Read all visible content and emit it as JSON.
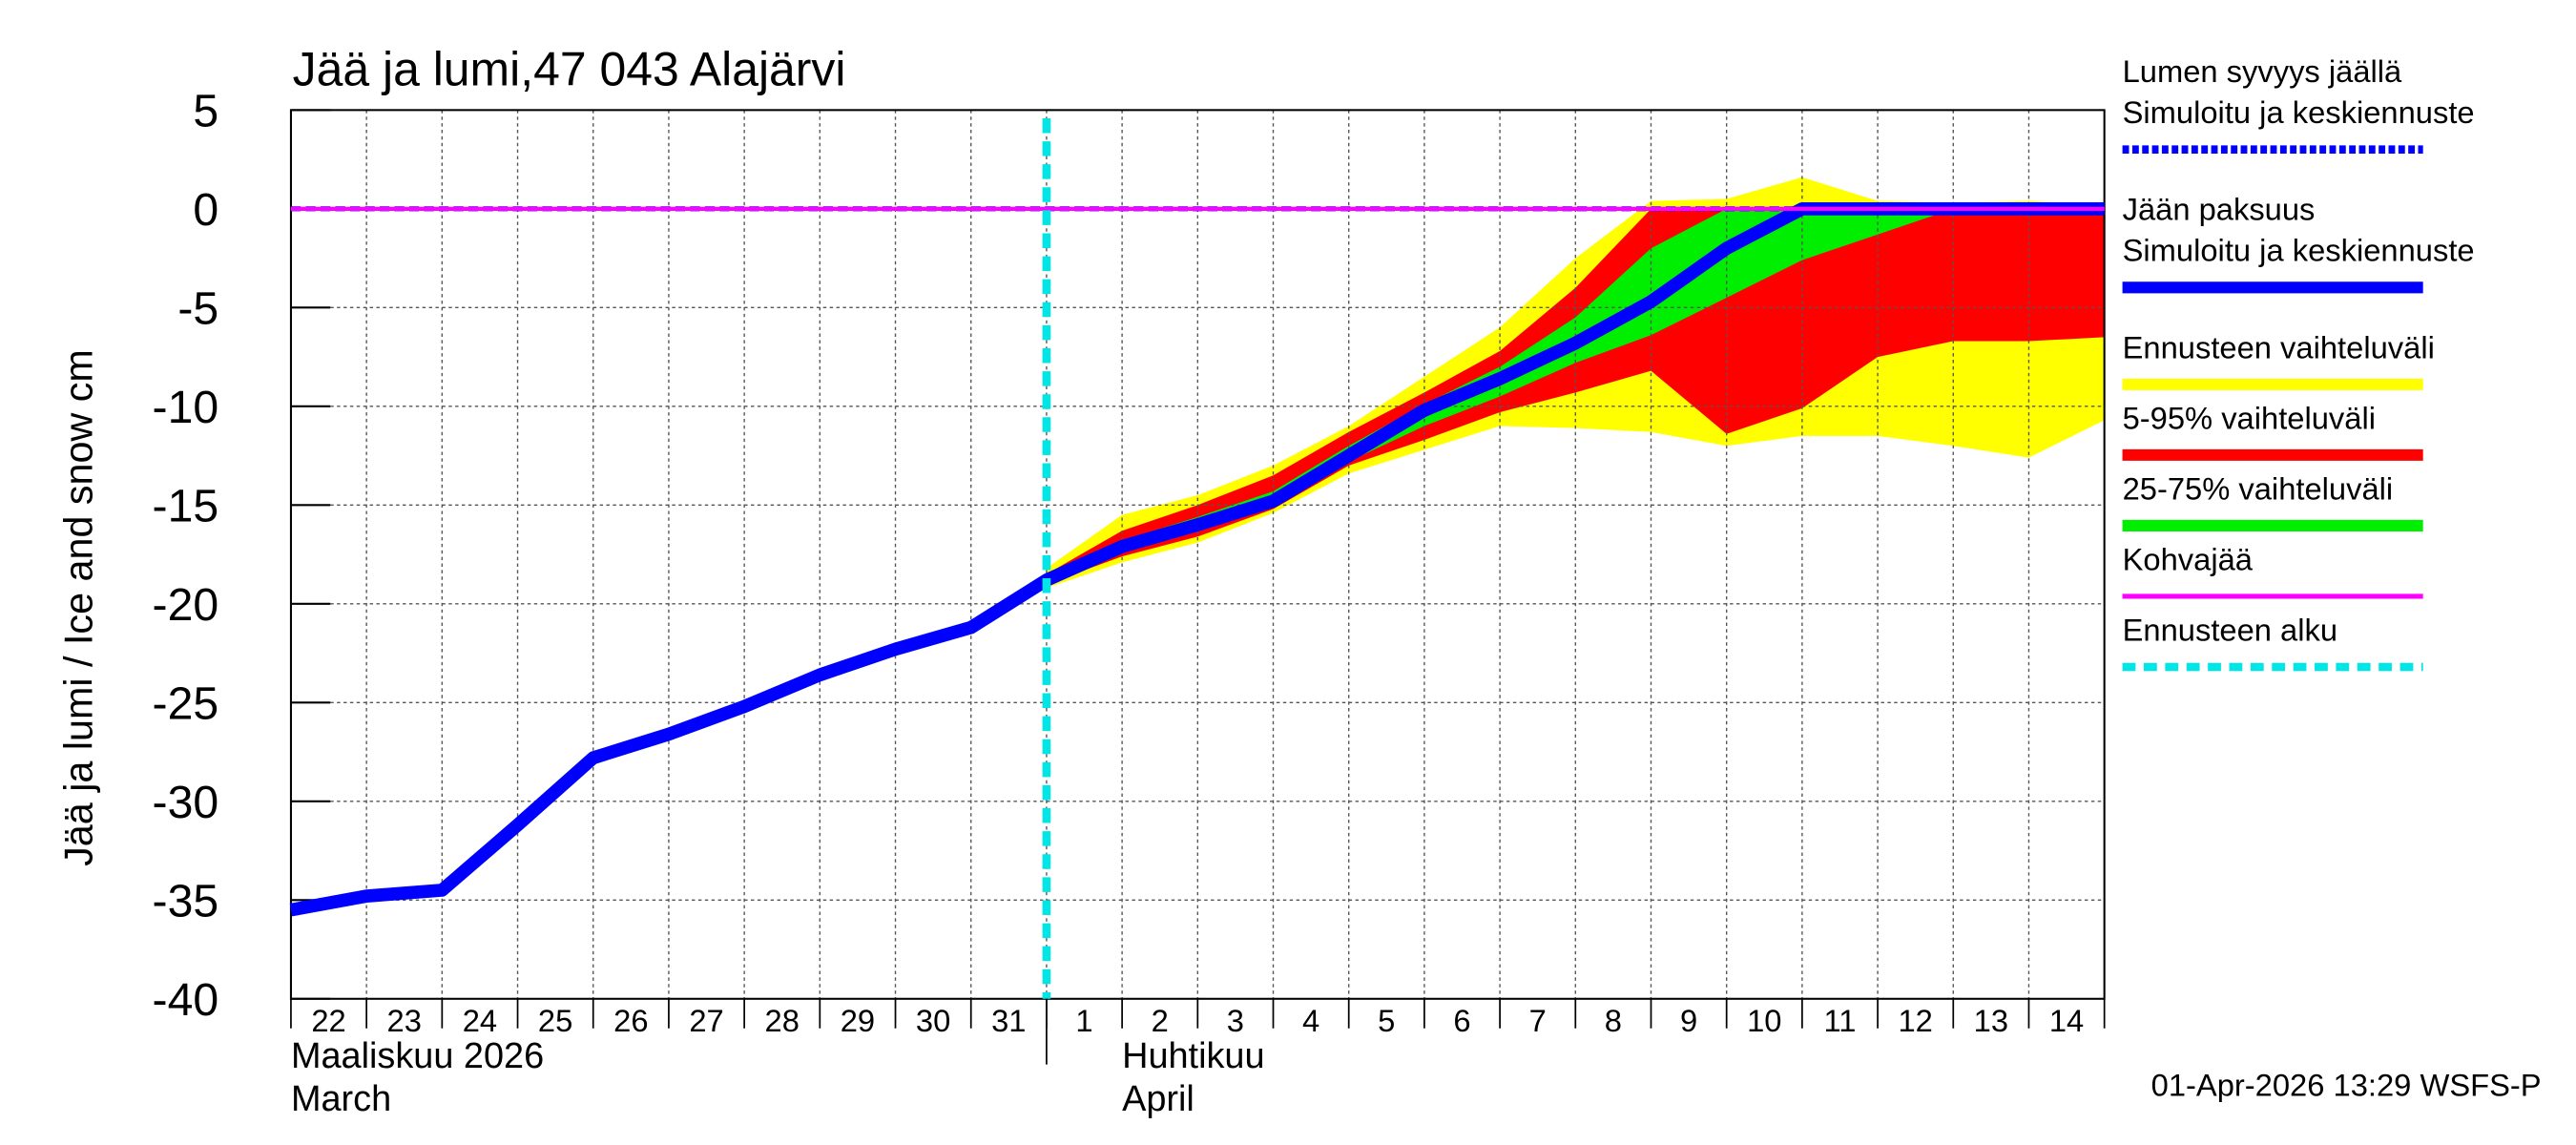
{
  "chart_data": {
    "type": "line",
    "title": "Jää ja lumi,47 043 Alajärvi",
    "y_label": "Jää ja lumi / Ice and snow    cm",
    "categories": [
      "22",
      "23",
      "24",
      "25",
      "26",
      "27",
      "28",
      "29",
      "30",
      "31",
      "1",
      "2",
      "3",
      "4",
      "5",
      "6",
      "7",
      "8",
      "9",
      "10",
      "11",
      "12",
      "13",
      "14",
      null
    ],
    "months": [
      {
        "at": "22",
        "lines": [
          "Maaliskuu 2026",
          "March"
        ]
      },
      {
        "at": "2",
        "lines": [
          "Huhtikuu",
          "April"
        ]
      }
    ],
    "forecast_start": "1",
    "ylim": [
      -40,
      5
    ],
    "yticks": [
      5,
      0,
      -5,
      -10,
      -15,
      -20,
      -25,
      -30,
      -35,
      -40
    ],
    "grid": true,
    "bands": [
      {
        "name": "Ennusteen vaihteluväli",
        "color": "#ffff00",
        "low": [
          null,
          null,
          null,
          null,
          null,
          null,
          null,
          null,
          null,
          null,
          -19.2,
          -17.9,
          -16.9,
          -15.4,
          -13.4,
          -12.2,
          -11.0,
          -11.1,
          -11.3,
          -12.0,
          -11.5,
          -11.5,
          -12.0,
          -12.6,
          -10.7
        ],
        "high": [
          null,
          null,
          null,
          null,
          null,
          null,
          null,
          null,
          null,
          null,
          -18.2,
          -15.5,
          -14.5,
          -13.0,
          -11.0,
          -8.5,
          -6.0,
          -2.5,
          0.4,
          0.5,
          1.6,
          0.4,
          0.3,
          0.4,
          0.2
        ]
      },
      {
        "name": "5-95% vaihteluväli",
        "color": "#ff0000",
        "low": [
          null,
          null,
          null,
          null,
          null,
          null,
          null,
          null,
          null,
          null,
          -19.0,
          -17.6,
          -16.6,
          -15.2,
          -13.0,
          -11.7,
          -10.3,
          -9.3,
          -8.2,
          -11.4,
          -10.1,
          -7.5,
          -6.7,
          -6.7,
          -6.5
        ],
        "high": [
          null,
          null,
          null,
          null,
          null,
          null,
          null,
          null,
          null,
          null,
          -18.5,
          -16.3,
          -15.0,
          -13.5,
          -11.3,
          -9.3,
          -7.2,
          -4.0,
          0,
          0,
          0,
          0,
          0,
          0,
          0
        ]
      },
      {
        "name": "25-75% vaihteluväli",
        "color": "#00ee00",
        "low": [
          null,
          null,
          null,
          null,
          null,
          null,
          null,
          null,
          null,
          null,
          -18.9,
          -17.3,
          -16.3,
          -14.9,
          -12.8,
          -11.0,
          -9.5,
          -7.8,
          -6.4,
          -4.5,
          -2.6,
          -1.3,
          0,
          0,
          0
        ],
        "high": [
          null,
          null,
          null,
          null,
          null,
          null,
          null,
          null,
          null,
          null,
          -18.7,
          -16.8,
          -15.6,
          -14.3,
          -12.0,
          -9.9,
          -8.0,
          -5.5,
          -2.0,
          0,
          0,
          0,
          0,
          0,
          0
        ]
      }
    ],
    "series": [
      {
        "name": [
          "Kohvajää"
        ],
        "color": "#ff00ff",
        "style": "thin",
        "values": [
          0,
          0,
          0,
          0,
          0,
          0,
          0,
          0,
          0,
          0,
          0,
          0,
          0,
          0,
          0,
          0,
          0,
          0,
          0,
          0,
          0,
          0,
          0,
          0,
          0
        ]
      },
      {
        "name": [
          "Lumen syvyys jäällä",
          "Simuloitu ja keskiennuste"
        ],
        "color": "#0000ff",
        "style": "dashed",
        "values": [
          0,
          0,
          0,
          0,
          0,
          0,
          0,
          0,
          0,
          0,
          0,
          0,
          0,
          0,
          0,
          0,
          0,
          0,
          0,
          0,
          0,
          0,
          0,
          0,
          0
        ]
      },
      {
        "name": [
          "Jään paksuus",
          "Simuloitu ja keskiennuste"
        ],
        "color": "#0000ff",
        "style": "thick",
        "values": [
          -35.5,
          -34.8,
          -34.5,
          -31.2,
          -27.8,
          -26.6,
          -25.2,
          -23.6,
          -22.3,
          -21.2,
          -18.8,
          -17.1,
          -16.0,
          -14.8,
          -12.5,
          -10.2,
          -8.6,
          -6.8,
          -4.7,
          -2.0,
          0,
          0,
          0,
          0,
          0
        ]
      }
    ],
    "forecast_legend": "Ennusteen alku",
    "forecast_color": "#00e5e5",
    "footer": "01-Apr-2026 13:29 WSFS-P"
  }
}
